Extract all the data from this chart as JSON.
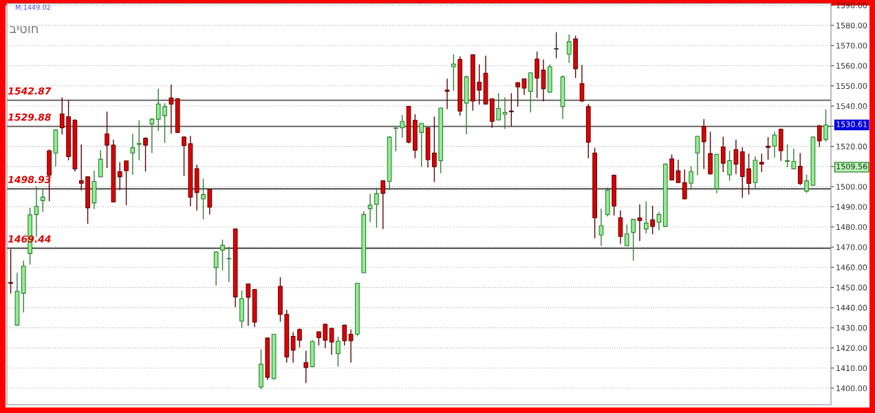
{
  "chart_data": {
    "type": "candlestick",
    "title": "ביטוח",
    "categories": [
      null,
      null,
      null,
      null,
      null,
      null,
      null,
      null,
      null,
      null,
      null,
      null,
      null,
      null,
      null,
      null,
      null,
      null,
      null,
      null,
      null,
      null,
      null,
      null,
      null,
      null,
      null,
      null,
      null,
      null,
      null,
      null,
      null,
      null,
      null,
      null,
      null,
      null,
      null,
      null,
      null,
      null,
      null,
      null,
      null,
      null,
      null,
      null,
      null,
      null,
      null,
      null,
      null,
      null,
      null,
      null,
      null,
      null,
      null,
      null,
      null,
      null,
      null,
      null,
      null,
      null,
      null,
      null,
      null,
      null,
      null,
      null,
      null,
      null,
      null,
      null,
      null,
      null,
      null,
      null,
      null,
      null,
      null,
      null,
      null,
      null,
      null,
      null,
      null,
      null,
      null,
      null,
      null,
      null,
      null,
      null,
      null,
      null,
      null,
      null,
      null,
      null,
      null,
      null,
      null,
      null,
      null,
      null,
      null,
      null,
      null,
      null,
      null,
      null,
      null,
      null,
      null,
      null,
      null,
      null,
      null,
      null,
      null,
      null,
      null,
      null,
      null,
      null
    ],
    "ohlc": [
      [
        1452.5,
        1469,
        1447,
        1452
      ],
      [
        1431.3,
        1457.3,
        1431.3,
        1448.1
      ],
      [
        1447.1,
        1463.3,
        1437.6,
        1460.6
      ],
      [
        1466.8,
        1489.5,
        1461.3,
        1486.0
      ],
      [
        1486.2,
        1500,
        1475.1,
        1490.2
      ],
      [
        1493.1,
        1499.1,
        1487.5,
        1494.8
      ],
      [
        1517.8,
        1518.5,
        1492.8,
        1505.7
      ],
      [
        1516.7,
        1528.2,
        1509.9,
        1528.2
      ],
      [
        1536.1,
        1544.3,
        1525.9,
        1529.2
      ],
      [
        1534.7,
        1543,
        1513.1,
        1514.9
      ],
      [
        1532.9,
        1533.5,
        1507.5,
        1508.8
      ],
      [
        1502.9,
        1521,
        1498.1,
        1501.7
      ],
      [
        1504.9,
        1505,
        1481.6,
        1489.5
      ],
      [
        1491.9,
        1507.9,
        1488.9,
        1502.6
      ],
      [
        1504.9,
        1518.1,
        1504.9,
        1513.6
      ],
      [
        1526.2,
        1537.2,
        1509.2,
        1520.6
      ],
      [
        1520.6,
        1523.3,
        1492.4,
        1492.4
      ],
      [
        1507.5,
        1512.2,
        1498.3,
        1504.9
      ],
      [
        1512.8,
        1513,
        1490.8,
        1507.9
      ],
      [
        1516.7,
        1526.3,
        1505.9,
        1519.3
      ],
      [
        1521,
        1532.9,
        1513.1,
        1521.5
      ],
      [
        1524,
        1524.5,
        1507.5,
        1520.6
      ],
      [
        1531.1,
        1534,
        1516.7,
        1533.5
      ],
      [
        1533.5,
        1548.6,
        1527.6,
        1541
      ],
      [
        1535.2,
        1541.4,
        1521.7,
        1539.7
      ],
      [
        1544,
        1550.6,
        1526.3,
        1541
      ],
      [
        1543.6,
        1544,
        1526.5,
        1526.9
      ],
      [
        1524.6,
        1525,
        1505.3,
        1520.4
      ],
      [
        1521.3,
        1525.2,
        1490.2,
        1494.8
      ],
      [
        1508.9,
        1510.9,
        1488.2,
        1497.1
      ],
      [
        1493.9,
        1504,
        1483.8,
        1496.1
      ],
      [
        1498.7,
        1499,
        1486.2,
        1489.8
      ],
      [
        1459.9,
        1468,
        1451,
        1467.6
      ],
      [
        1468.5,
        1473.7,
        1458.4,
        1470.9
      ],
      [
        1464.2,
        1470.2,
        1452.7,
        1464.4
      ],
      [
        1479,
        1479.3,
        1440.2,
        1445.3
      ],
      [
        1433.3,
        1448.4,
        1430,
        1444.5
      ],
      [
        1451.7,
        1452,
        1431,
        1445.1
      ],
      [
        1449,
        1449.3,
        1430.4,
        1432.8
      ],
      [
        1400.6,
        1419.2,
        1399.5,
        1411.9
      ],
      [
        1424.9,
        1425.2,
        1404.1,
        1405.4
      ],
      [
        1404.8,
        1427,
        1404.2,
        1426.7
      ],
      [
        1450.5,
        1455.1,
        1433,
        1436.6
      ],
      [
        1436.6,
        1438.9,
        1412.7,
        1415.5
      ],
      [
        1425.8,
        1427.8,
        1412.7,
        1418.9
      ],
      [
        1429.1,
        1429.7,
        1420.3,
        1423.8
      ],
      [
        1412.7,
        1418.6,
        1402.6,
        1410.3
      ],
      [
        1410.7,
        1423.8,
        1410.5,
        1423.2
      ],
      [
        1428,
        1428.2,
        1421.2,
        1425.1
      ],
      [
        1431.7,
        1432,
        1419.9,
        1423.8
      ],
      [
        1429.7,
        1430,
        1416.6,
        1422.9
      ],
      [
        1417.2,
        1425.5,
        1410.7,
        1423.4
      ],
      [
        1431.3,
        1431.5,
        1421.2,
        1423.6
      ],
      [
        1426.8,
        1429.1,
        1412.7,
        1423.6
      ],
      [
        1426.8,
        1452.3,
        1425.8,
        1452.1
      ],
      [
        1457.3,
        1487.8,
        1457,
        1486.2
      ],
      [
        1489.1,
        1496.5,
        1482.5,
        1490.8
      ],
      [
        1491.2,
        1499.4,
        1479.6,
        1496.5
      ],
      [
        1502.9,
        1503.2,
        1479,
        1496.7
      ],
      [
        1502.6,
        1525,
        1498.3,
        1524.6
      ],
      [
        1528.9,
        1529.4,
        1517.5,
        1529.1
      ],
      [
        1529.2,
        1535.5,
        1524.3,
        1532.4
      ],
      [
        1539.8,
        1540,
        1521.5,
        1522
      ],
      [
        1532.9,
        1535.9,
        1514.1,
        1518.1
      ],
      [
        1526.9,
        1531.6,
        1509.9,
        1531.4
      ],
      [
        1529.2,
        1529.5,
        1509.5,
        1513.4
      ],
      [
        1516.7,
        1534.8,
        1502.3,
        1509.9
      ],
      [
        1512.9,
        1539.2,
        1506.6,
        1539
      ],
      [
        1547.9,
        1553.6,
        1538.5,
        1547.3
      ],
      [
        1559.5,
        1565.7,
        1547.6,
        1560.8
      ],
      [
        1563.1,
        1564.7,
        1535.2,
        1537.5
      ],
      [
        1541.4,
        1555,
        1526,
        1554.5
      ],
      [
        1565.4,
        1565.7,
        1537.7,
        1542.5
      ],
      [
        1551.9,
        1560.7,
        1540.7,
        1547.9
      ],
      [
        1556.3,
        1565,
        1540.8,
        1541
      ],
      [
        1543.6,
        1543.8,
        1529.2,
        1532.4
      ],
      [
        1533.1,
        1546.4,
        1533,
        1538.8
      ],
      [
        1535.9,
        1544.3,
        1528.7,
        1536.8
      ],
      [
        1537.5,
        1546.4,
        1529.9,
        1537.1
      ],
      [
        1551.6,
        1551.8,
        1539.7,
        1549.5
      ],
      [
        1553.5,
        1553.7,
        1545.6,
        1548.9
      ],
      [
        1547.3,
        1556.7,
        1536.8,
        1556.5
      ],
      [
        1563.3,
        1567,
        1544,
        1553.9
      ],
      [
        1557.8,
        1563.1,
        1542.3,
        1548.6
      ],
      [
        1546.9,
        1560.7,
        1546.7,
        1559.5
      ],
      [
        1568.3,
        1576.6,
        1563.7,
        1568.3
      ],
      [
        1539.7,
        1555.2,
        1533.5,
        1554.5
      ],
      [
        1565.7,
        1575.5,
        1561.4,
        1571.9
      ],
      [
        1573.3,
        1574.9,
        1553.9,
        1558.5
      ],
      [
        1551.2,
        1560.4,
        1542,
        1542.5
      ],
      [
        1539.7,
        1541,
        1514.1,
        1522
      ],
      [
        1516.7,
        1519.3,
        1474.4,
        1484.5
      ],
      [
        1476,
        1489.1,
        1470.7,
        1480.6
      ],
      [
        1486.2,
        1499.6,
        1485.2,
        1498.3
      ],
      [
        1505.7,
        1506,
        1485.6,
        1490.4
      ],
      [
        1484.6,
        1488.2,
        1471.5,
        1475.3
      ],
      [
        1470.7,
        1481.2,
        1470.5,
        1476.6
      ],
      [
        1477.3,
        1484,
        1463.3,
        1483.8
      ],
      [
        1484.5,
        1491.2,
        1473.1,
        1483.2
      ],
      [
        1479,
        1492.8,
        1476.8,
        1481.9
      ],
      [
        1483.6,
        1490.5,
        1476.4,
        1480.3
      ],
      [
        1482.3,
        1487.5,
        1478.3,
        1486.2
      ],
      [
        1480.3,
        1511.5,
        1480,
        1511.2
      ],
      [
        1513.8,
        1516,
        1503,
        1503.3
      ],
      [
        1507.9,
        1513.4,
        1501.8,
        1502
      ],
      [
        1502,
        1508.5,
        1493.7,
        1493.9
      ],
      [
        1501.7,
        1510.1,
        1499.1,
        1507.5
      ],
      [
        1516.7,
        1525.2,
        1505.7,
        1525
      ],
      [
        1529.9,
        1533.5,
        1508.8,
        1522.3
      ],
      [
        1516.4,
        1527.3,
        1506,
        1506.3
      ],
      [
        1499,
        1516.2,
        1496.7,
        1516
      ],
      [
        1519.7,
        1524.7,
        1507.2,
        1511.6
      ],
      [
        1505.9,
        1517.8,
        1503,
        1512.9
      ],
      [
        1518.4,
        1523.3,
        1506.3,
        1511.2
      ],
      [
        1517.3,
        1519.5,
        1494.4,
        1505
      ],
      [
        1508.8,
        1516.4,
        1496.1,
        1501.6
      ],
      [
        1502,
        1515.1,
        1498.7,
        1513.1
      ],
      [
        1512.1,
        1516.4,
        1507.2,
        1511.2
      ],
      [
        1520.1,
        1524.6,
        1513.4,
        1519.5
      ],
      [
        1520.1,
        1527.3,
        1514.5,
        1525.6
      ],
      [
        1528.5,
        1528.8,
        1512.8,
        1517.8
      ],
      [
        1512.5,
        1521,
        1509.6,
        1512.9
      ],
      [
        1508.8,
        1518.8,
        1508.6,
        1512.5
      ],
      [
        1510.1,
        1516.7,
        1500.7,
        1501.6
      ],
      [
        1497.8,
        1505.9,
        1497,
        1502.9
      ],
      [
        1500.7,
        1524.8,
        1500.5,
        1524.6
      ],
      [
        1530.2,
        1530.6,
        1519.7,
        1522.7
      ],
      [
        1523.4,
        1538.4,
        1522.3,
        1530.61
      ]
    ],
    "ylim": [
      1391.8,
      1590.9
    ],
    "yticks": [
      {
        "value": 1400,
        "label": "1400.00"
      },
      {
        "value": 1410,
        "label": "1410.00"
      },
      {
        "value": 1420,
        "label": "1420.00"
      },
      {
        "value": 1430,
        "label": "1430.00"
      },
      {
        "value": 1440,
        "label": "1440.00"
      },
      {
        "value": 1450,
        "label": "1450.00"
      },
      {
        "value": 1460,
        "label": "1460.00"
      },
      {
        "value": 1470,
        "label": "1470.00"
      },
      {
        "value": 1480,
        "label": "1480.00"
      },
      {
        "value": 1490,
        "label": "1490.00"
      },
      {
        "value": 1500,
        "label": "1500.00"
      },
      {
        "value": 1510,
        "label": null
      },
      {
        "value": 1520,
        "label": "1520.00"
      },
      {
        "value": 1530,
        "label": null
      },
      {
        "value": 1540,
        "label": "1540.00"
      },
      {
        "value": 1550,
        "label": "1550.00"
      },
      {
        "value": 1560,
        "label": "1560.00"
      },
      {
        "value": 1570,
        "label": "1570.00"
      },
      {
        "value": 1580,
        "label": "1580.00"
      },
      {
        "value": 1590,
        "label": "1590.00"
      }
    ],
    "tick_labels": "y",
    "grid": "y",
    "ref_lines": [
      {
        "axis": "y",
        "value": 1542.87,
        "label": "1542.87",
        "color": "#555555"
      },
      {
        "axis": "y",
        "value": 1529.88,
        "label": "1529.88",
        "color": "#555555"
      },
      {
        "axis": "y",
        "value": 1498.93,
        "label": "1498.93",
        "color": "#333333"
      },
      {
        "axis": "y",
        "value": 1469.44,
        "label": "1469.44",
        "color": "#333333"
      }
    ],
    "annotations": [
      "M:1449.02",
      "1530.61",
      "1509.56"
    ]
  }
}
